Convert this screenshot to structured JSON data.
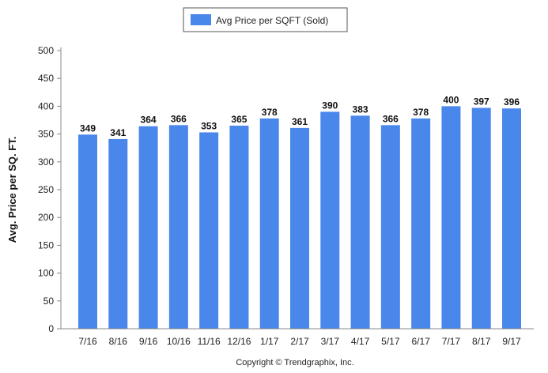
{
  "chart_data": {
    "type": "bar",
    "categories": [
      "7/16",
      "8/16",
      "9/16",
      "10/16",
      "11/16",
      "12/16",
      "1/17",
      "2/17",
      "3/17",
      "4/17",
      "5/17",
      "6/17",
      "7/17",
      "8/17",
      "9/17"
    ],
    "series": [
      {
        "name": "Avg Price per SQFT (Sold)",
        "values": [
          349,
          341,
          364,
          366,
          353,
          365,
          378,
          361,
          390,
          383,
          366,
          378,
          400,
          397,
          396
        ]
      }
    ],
    "ylabel": "Avg. Price per SQ. FT.",
    "xlabel": "",
    "ylim": [
      0,
      500
    ],
    "yticks": [
      0,
      50,
      100,
      150,
      200,
      250,
      300,
      350,
      400,
      450,
      500
    ],
    "grid": false,
    "legend": "top-center",
    "bar_color": "#4a87eb",
    "copyright": "Copyright © Trendgraphix, Inc."
  }
}
